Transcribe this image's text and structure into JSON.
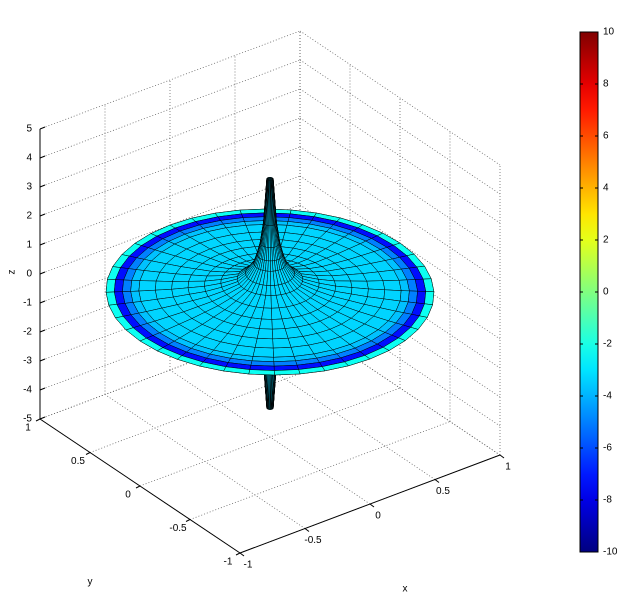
{
  "chart_data": {
    "type": "surface",
    "xlabel": "x",
    "ylabel": "y",
    "zlabel": "z",
    "xlim": [
      -1,
      1
    ],
    "ylim": [
      -1,
      1
    ],
    "zlim": [
      -5,
      5
    ],
    "xticks": [
      -1,
      -0.5,
      0,
      0.5,
      1
    ],
    "yticks": [
      -1,
      -0.5,
      0,
      0.5,
      1
    ],
    "zticks": [
      -5,
      -4,
      -3,
      -2,
      -1,
      0,
      1,
      2,
      3,
      4,
      5
    ],
    "grid": true,
    "colormap": "jet",
    "clim": [
      -10,
      10
    ],
    "cticks": [
      -10,
      -8,
      -6,
      -4,
      -2,
      0,
      2,
      4,
      6,
      8,
      10
    ],
    "surface": {
      "r": [
        0.02,
        0.04,
        0.06,
        0.08,
        0.1,
        0.15,
        0.2,
        0.3,
        0.4,
        0.5,
        0.6,
        0.7,
        0.8,
        0.85,
        0.9,
        0.95,
        1.0
      ],
      "z_upper": [
        3.9,
        2.4,
        1.7,
        1.3,
        1.0,
        0.65,
        0.45,
        0.3,
        0.2,
        0.15,
        0.1,
        0.07,
        0.04,
        0.03,
        0.02,
        0.01,
        0
      ],
      "z_lower": [
        -4,
        -2.5,
        -1.8,
        -1.4,
        -1.1,
        -0.7,
        -0.5,
        -0.35,
        -0.25,
        -0.2,
        -0.15,
        -0.1,
        -0.07,
        -0.05,
        -0.04,
        -0.02,
        0
      ],
      "c": [
        -3.3,
        -3.3,
        -3.3,
        -3.3,
        -3.3,
        -3.3,
        -3.3,
        -3.3,
        -3.3,
        -3.3,
        -3.3,
        -3.3,
        -3.4,
        -4,
        -6,
        -8.5,
        4
      ]
    }
  }
}
